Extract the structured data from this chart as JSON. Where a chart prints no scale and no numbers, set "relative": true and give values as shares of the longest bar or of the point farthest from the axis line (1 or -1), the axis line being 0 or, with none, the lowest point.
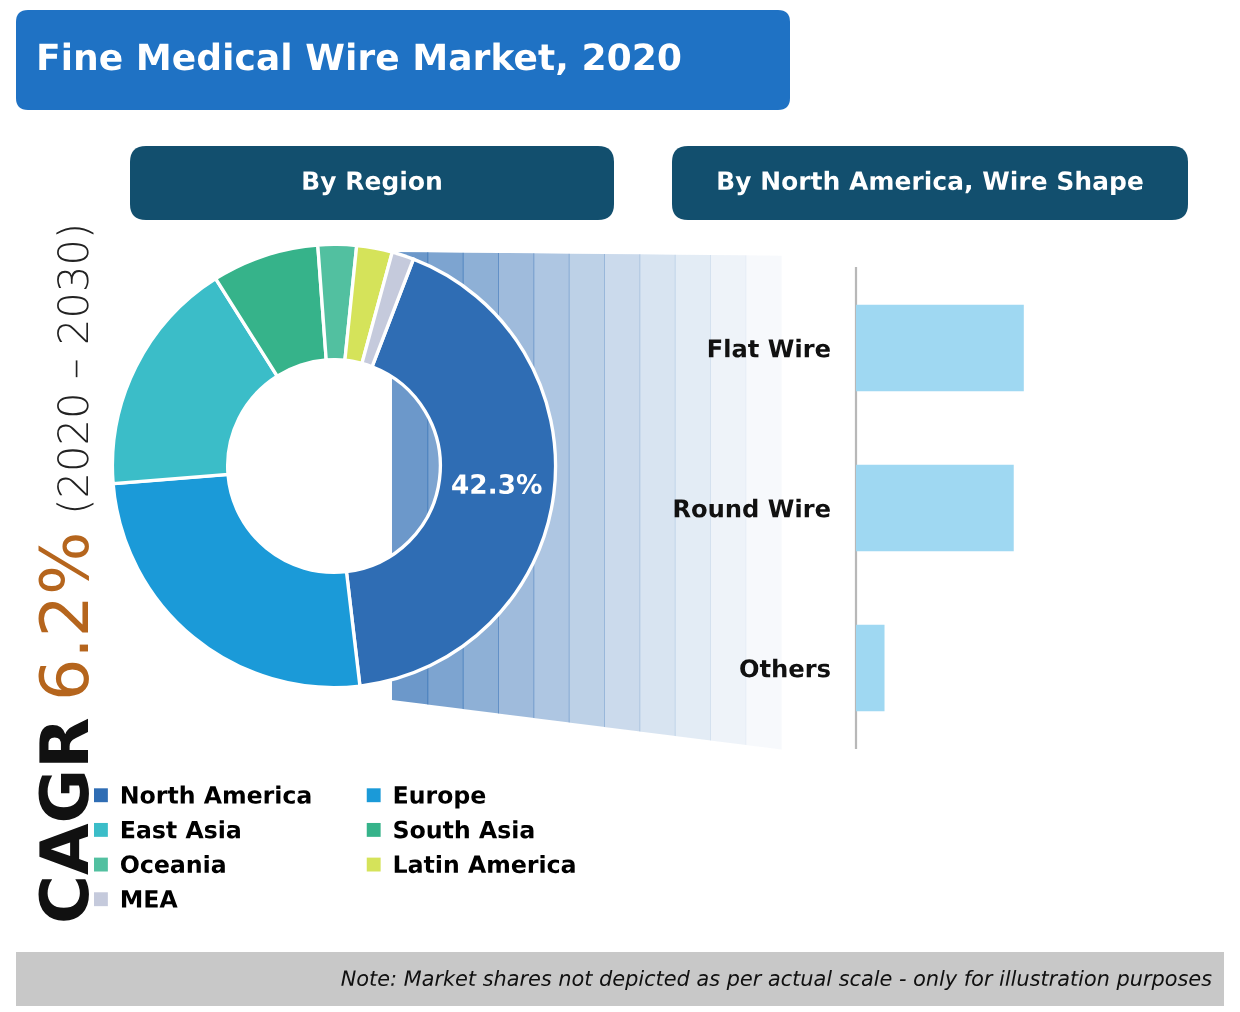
{
  "chart_data": [
    {
      "type": "donut",
      "title": "Fine Medical Wire Market, 2020",
      "subtitle": "By Region",
      "categories": [
        "North America",
        "Europe",
        "East Asia",
        "South Asia",
        "Oceania",
        "Latin America",
        "MEA"
      ],
      "values": [
        42.3,
        25.6,
        17.3,
        7.8,
        2.8,
        2.6,
        1.6
      ],
      "colors": [
        "#2f6db4",
        "#1b9ad8",
        "#3bbdc8",
        "#36b38a",
        "#52c0a0",
        "#d5e35a",
        "#c5cadc"
      ],
      "value_labels": [
        "42.3%",
        null,
        null,
        null,
        null,
        null,
        null
      ],
      "legend": "bottom",
      "annotations": [
        "CAGR",
        "6.2%",
        "(2020 – 2030)",
        "Note: Market shares not depicted as per actual scale - only for illustration purposes"
      ]
    },
    {
      "type": "bar",
      "orientation": "horizontal",
      "relative": true,
      "title": "By North America, Wire Shape",
      "categories": [
        "Flat Wire",
        "Round Wire",
        "Others"
      ],
      "values": [
        1,
        0.94,
        0.17
      ],
      "color": "#9fd8f2"
    }
  ]
}
